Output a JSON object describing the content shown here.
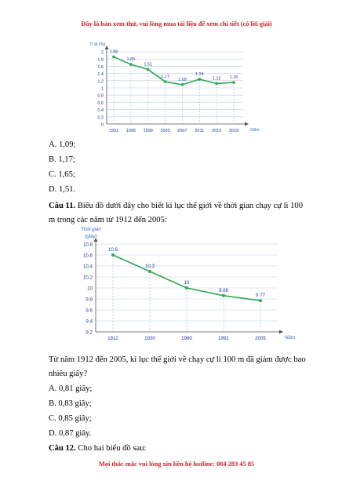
{
  "header_banner": "Đây là bản xem thử, vui lòng mua tài liệu để xem chi tiết (có lời giải)",
  "footer_banner": "Mọi thắc mắc vui lòng xin liên hệ hotline: 084 283 45 85",
  "colors": {
    "banner": "#d81f26",
    "line": "#2fa84f",
    "axis_text": "#1f3a93",
    "axis_label": "#2f6fb7"
  },
  "chart_data": [
    {
      "type": "line",
      "ylabel": "Tỉ lệ (%)",
      "xlabel": "Năm",
      "ylim": [
        0,
        2
      ],
      "yticks": [
        "0",
        "0.2",
        "0.4",
        "0.6",
        "0.8",
        "1",
        "1.2",
        "1.4",
        "1.6",
        "1.8",
        "2"
      ],
      "categories": [
        "1991",
        "1995",
        "1999",
        "2003",
        "2007",
        "2011",
        "2015",
        "2019"
      ],
      "series": [
        {
          "values": [
            1.86,
            1.65,
            1.51,
            1.17,
            1.09,
            1.24,
            1.12,
            1.15
          ]
        }
      ],
      "data_labels": [
        "1.86",
        "1.65",
        "1.51",
        "1.17",
        "1.09",
        "1.24",
        "1.12",
        "1.15"
      ],
      "grid": true
    },
    {
      "type": "line",
      "ylabel": "Thời gian (giây)",
      "ylabel_lines": [
        "Thời gian",
        "(giây)"
      ],
      "xlabel": "Năm",
      "ylim": [
        9.2,
        10.8
      ],
      "yticks": [
        "9.2",
        "9.4",
        "9.6",
        "9.8",
        "10",
        "10.2",
        "10.4",
        "10.6",
        "10.8"
      ],
      "categories": [
        "1912",
        "1930",
        "1960",
        "1991",
        "2005"
      ],
      "series": [
        {
          "values": [
            10.6,
            10.3,
            10,
            9.86,
            9.77
          ]
        }
      ],
      "data_labels": [
        "10.6",
        "10.3",
        "10",
        "9.86",
        "9.77"
      ],
      "grid": true
    }
  ],
  "q10_options": [
    "A. 1,09;",
    "B. 1,17;",
    "C. 1,65;",
    "D. 1,51."
  ],
  "q11": {
    "label": "Câu 11.",
    "text": "Biểu đồ dưới đây cho biết kỉ lục thế giới về thời gian chạy cự li 100 m trong các năm từ 1912 đến 2005:",
    "question": "Từ năm 1912 đến 2005, kỉ lục thế giới về chạy cự li 100 m đã giảm được bao nhiêu giây?",
    "options": [
      "A. 0,81 giây;",
      "B. 0,83 giây;",
      "C. 0,85 giây;",
      "D. 0,87 giây."
    ]
  },
  "q12": {
    "label": "Câu 12.",
    "text": "Cho hai biểu đồ sau:"
  }
}
